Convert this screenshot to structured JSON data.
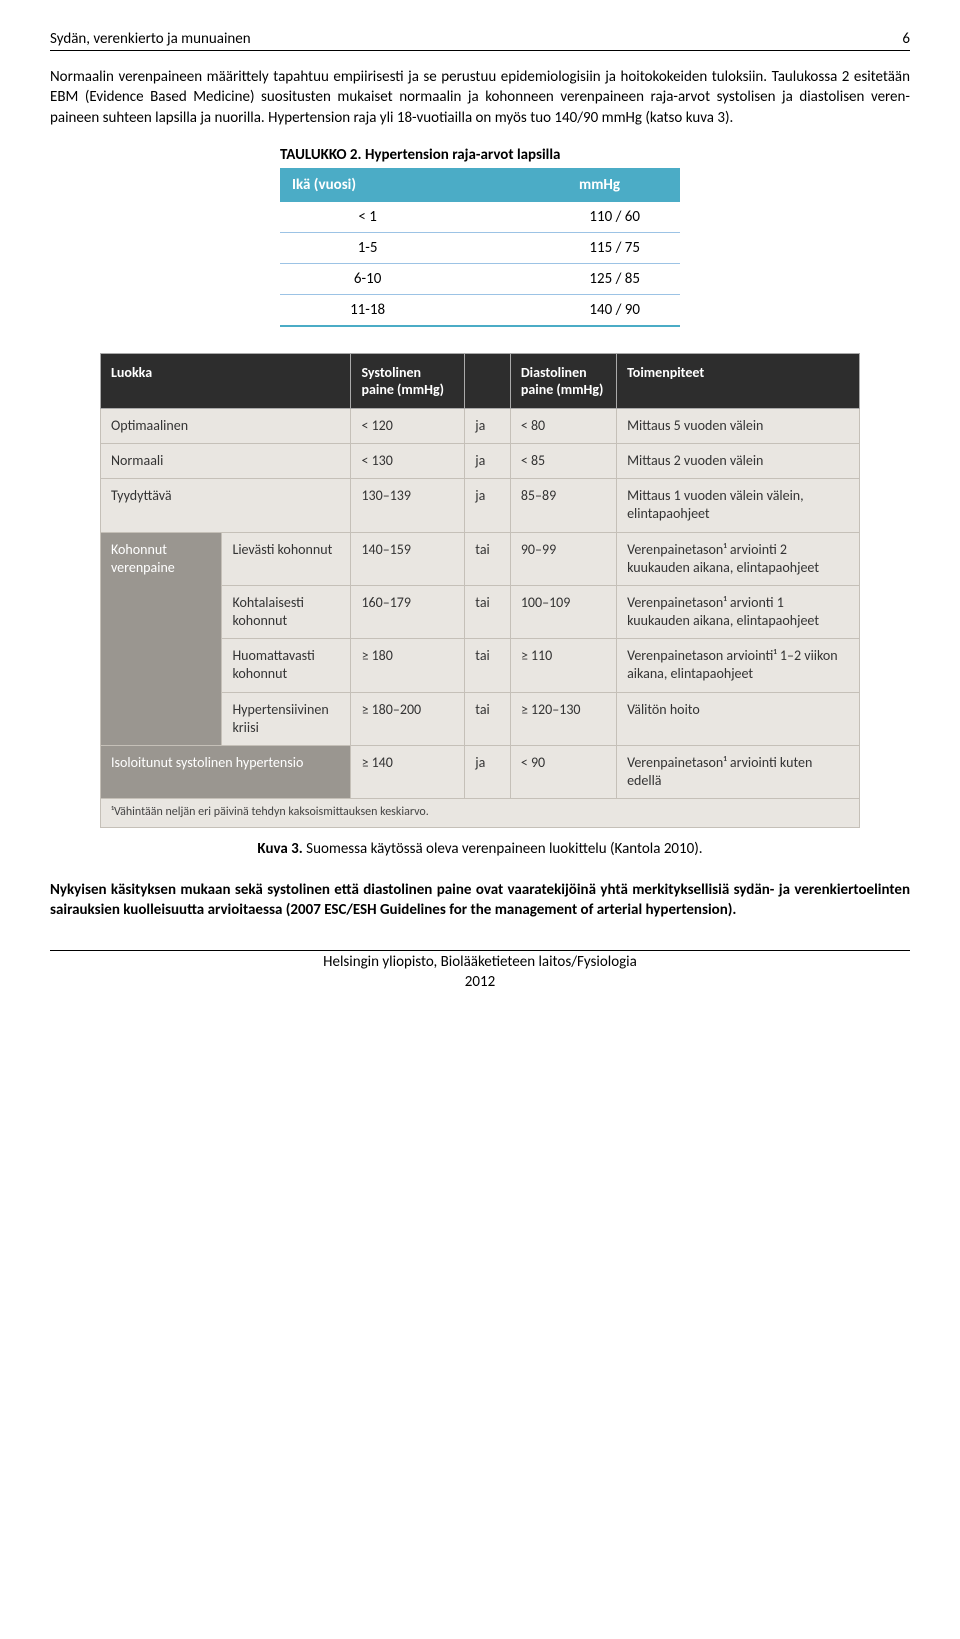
{
  "header": {
    "title": "Sydän, verenkierto ja munuainen",
    "pageNumber": "6"
  },
  "paragraphs": {
    "p1": "Normaalin verenpaineen määrittely tapahtuu empiirisesti ja se perustuu epidemiologisiin ja hoitokokeiden tuloksiin. Taulukossa 2 esitetään EBM (Evidence Based Medicine) suositusten mukaiset normaalin ja kohonneen verenpaineen raja-arvot systolisen ja diastolisen veren-paineen suhteen lapsilla ja nuorilla. Hypertension raja yli 18-vuotiailla on myös tuo 140/90 mmHg (katso kuva 3).",
    "p2": "Nykyisen käsityksen mukaan sekä systolinen että diastolinen paine ovat vaaratekijöinä yhtä merkityksellisiä sydän- ja verenkiertoelinten sairauksien kuolleisuutta arvioitaessa (2007 ESC/ESH Guidelines for the management of arterial hypertension)."
  },
  "table2": {
    "titleBold": "TAULUKKO 2.",
    "titleRest": " Hypertension raja-arvot lapsilla",
    "headers": {
      "col1": "Ikä (vuosi)",
      "col2": "mmHg"
    },
    "rows": [
      {
        "age": "< 1",
        "val": "110 / 60"
      },
      {
        "age": "1-5",
        "val": "115 / 75"
      },
      {
        "age": "6-10",
        "val": "125 / 85"
      },
      {
        "age": "11-18",
        "val": "140 / 90"
      }
    ]
  },
  "kuva3": {
    "headers": {
      "luokka": "Luokka",
      "sys": "Systolinen paine (mmHg)",
      "dia": "Diastolinen paine (mmHg)",
      "toim": "Toimenpiteet"
    },
    "rows": [
      {
        "cat": "Optimaalinen",
        "sub": "",
        "sys": "< 120",
        "op": "ja",
        "dia": "< 80",
        "act": "Mittaus 5 vuoden välein",
        "rowspan": 1
      },
      {
        "cat": "Normaali",
        "sub": "",
        "sys": "< 130",
        "op": "ja",
        "dia": "< 85",
        "act": "Mittaus 2 vuoden välein",
        "rowspan": 1
      },
      {
        "cat": "Tyydyttävä",
        "sub": "",
        "sys": "130–139",
        "op": "ja",
        "dia": "85–89",
        "act": "Mittaus 1 vuoden välein välein, elintapaohjeet",
        "rowspan": 1
      },
      {
        "cat": "Kohonnut verenpaine",
        "sub": "Lievästi kohonnut",
        "sys": "140–159",
        "op": "tai",
        "dia": "90–99",
        "act": "Verenpainetason¹ arviointi 2 kuukauden aikana, elintapaohjeet",
        "rowspan": 4
      },
      {
        "cat": "",
        "sub": "Kohtalaisesti kohonnut",
        "sys": "160–179",
        "op": "tai",
        "dia": "100–109",
        "act": "Verenpainetason¹ arvionti 1 kuukauden aikana, elintapaohjeet",
        "rowspan": 0
      },
      {
        "cat": "",
        "sub": "Huomattavasti kohonnut",
        "sys": "≥ 180",
        "op": "tai",
        "dia": "≥ 110",
        "act": "Verenpainetason arviointi¹ 1–2 viikon aikana, elintapaohjeet",
        "rowspan": 0
      },
      {
        "cat": "",
        "sub": "Hypertensiivinen kriisi",
        "sys": "≥ 180–200",
        "op": "tai",
        "dia": "≥ 120–130",
        "act": "Välitön hoito",
        "rowspan": 0
      },
      {
        "cat": "Isoloitunut systolinen hypertensio",
        "sub": "",
        "sys": "≥ 140",
        "op": "ja",
        "dia": "< 90",
        "act": "Verenpainetason¹ arviointi kuten edellä",
        "rowspan": 1
      }
    ],
    "footnote": "¹Vähintään neljän eri päivinä tehdyn kaksoismittauksen keskiarvo.",
    "captionBold": "Kuva 3.",
    "captionRest": " Suomessa käytössä oleva verenpaineen luokittelu (Kantola 2010)."
  },
  "footer": {
    "line1": "Helsingin yliopisto, Biolääketieteen laitos/Fysiologia",
    "line2": "2012"
  }
}
